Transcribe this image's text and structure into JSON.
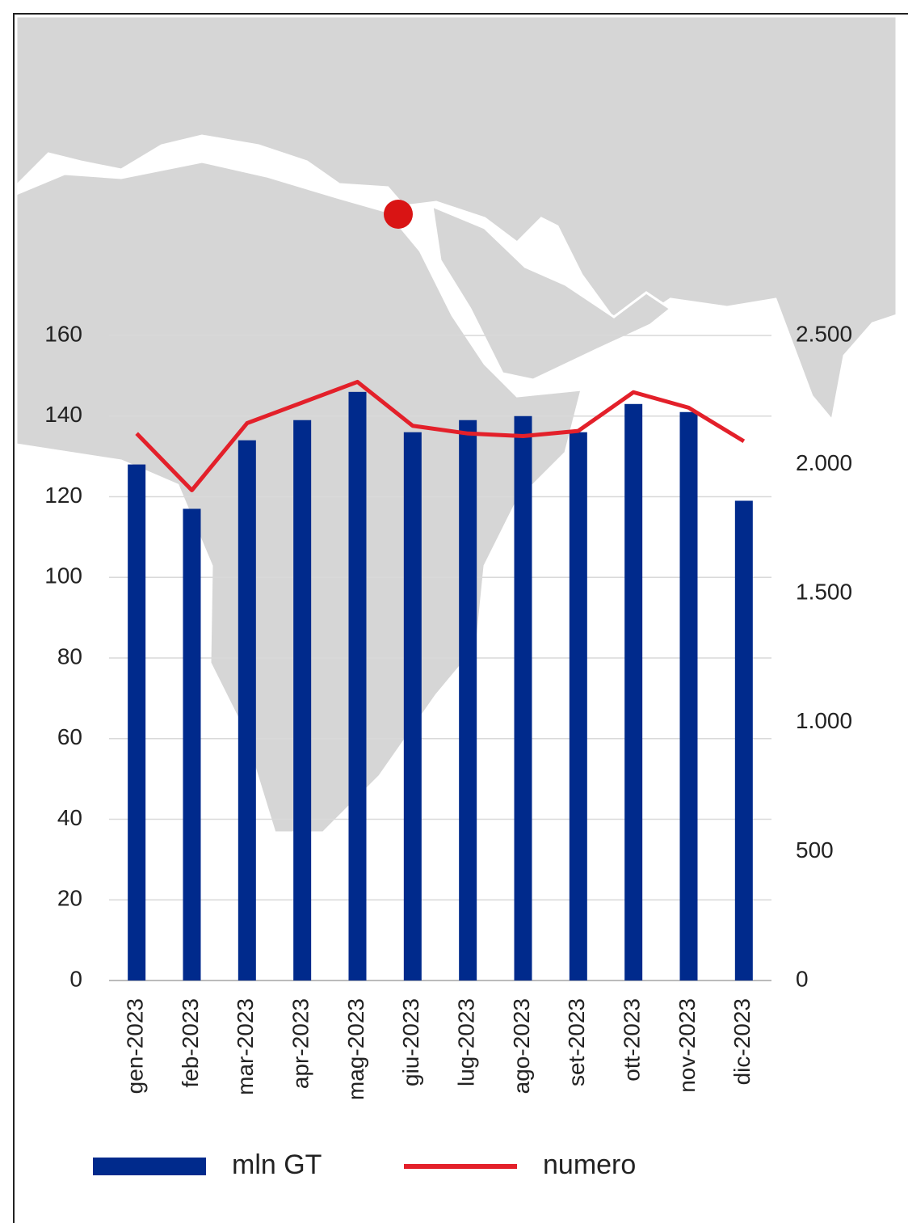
{
  "chart_data": {
    "type": "bar-line",
    "categories": [
      "gen-2023",
      "feb-2023",
      "mar-2023",
      "apr-2023",
      "mag-2023",
      "giu-2023",
      "lug-2023",
      "ago-2023",
      "set-2023",
      "ott-2023",
      "nov-2023",
      "dic-2023"
    ],
    "series": [
      {
        "name": "mln GT",
        "type": "bar",
        "color": "#002a8c",
        "axis": "y",
        "values": [
          128,
          117,
          134,
          139,
          146,
          136,
          139,
          140,
          136,
          143,
          141,
          119
        ]
      },
      {
        "name": "numero",
        "type": "line",
        "color": "#e3202a",
        "axis": "y2",
        "values": [
          2120,
          1900,
          2160,
          2240,
          2320,
          2150,
          2120,
          2110,
          2130,
          2280,
          2220,
          2090
        ]
      }
    ],
    "ylim": [
      0,
      160
    ],
    "yticks": [
      0,
      20,
      40,
      60,
      80,
      100,
      120,
      140,
      160
    ],
    "y2lim": [
      0,
      2500
    ],
    "y2ticks": [
      0,
      500,
      {
        "value": 1000,
        "label": "1.000"
      },
      {
        "value": 1500,
        "label": "1.500"
      },
      {
        "value": 2000,
        "label": "2.000"
      },
      {
        "value": 2500,
        "label": "2.500"
      }
    ],
    "grid": true,
    "legend": "bottom"
  }
}
